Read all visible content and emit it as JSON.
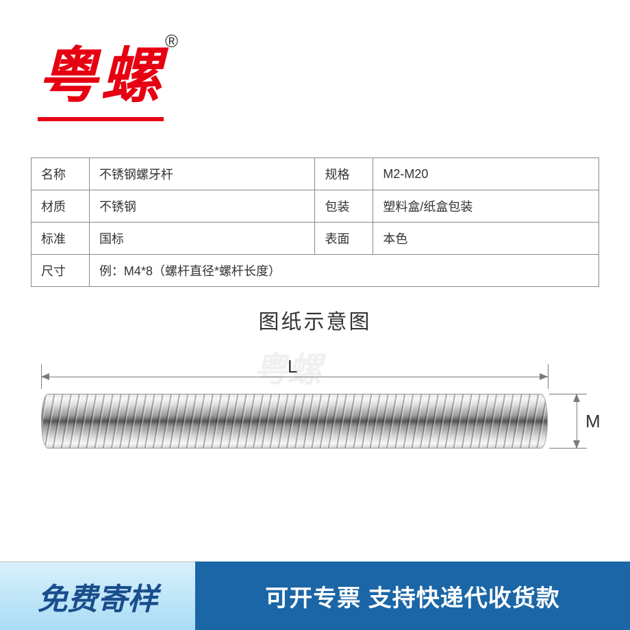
{
  "brand": {
    "name": "粤螺",
    "registered_mark": "®",
    "color": "#e60012",
    "font_size": 88
  },
  "table": {
    "border_color": "#888888",
    "font_size": 18,
    "rows": [
      {
        "label_a": "名称",
        "value_a": "不锈钢螺牙杆",
        "label_b": "规格",
        "value_b": "M2-M20"
      },
      {
        "label_a": "材质",
        "value_a": "不锈钢",
        "label_b": "包装",
        "value_b": "塑料盒/纸盒包装"
      },
      {
        "label_a": "标准",
        "value_a": "国标",
        "label_b": "表面",
        "value_b": "本色"
      },
      {
        "label_a": "尺寸",
        "value_a": "例：M4*8（螺杆直径*螺杆长度）",
        "label_b": "",
        "value_b": ""
      }
    ]
  },
  "diagram": {
    "title": "图纸示意图",
    "length_label": "L",
    "diameter_label": "M",
    "dim_line_color": "#7a7a7a",
    "label_font_size": 26,
    "rod_gradient_colors": [
      "#e8e8e8",
      "#f6f6f6",
      "#dcdcdc",
      "#9a9a9a",
      "#555555"
    ]
  },
  "watermark": {
    "text": "粤螺",
    "color": "#f0f0f0"
  },
  "footer": {
    "left_text": "免费寄样",
    "left_bg_top": "#d9f0fb",
    "left_bg_bottom": "#a9dcf5",
    "left_text_color": "#1a4d8c",
    "right_text": "可开专票 支持快递代收货款",
    "right_bg": "#1b66a6",
    "right_text_color": "#ffffff"
  }
}
